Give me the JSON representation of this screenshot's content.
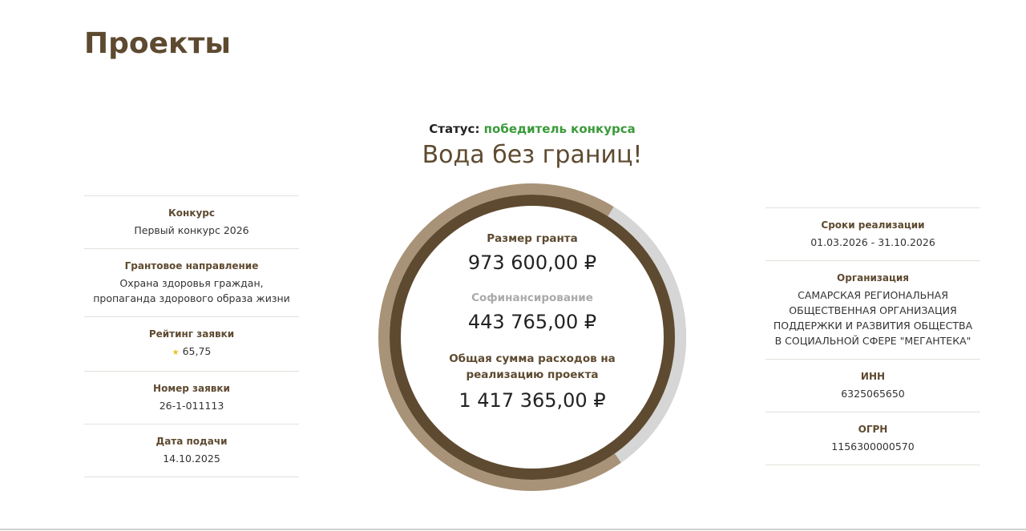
{
  "page": {
    "title": "Проекты"
  },
  "project": {
    "status_label": "Статус:",
    "status_value": "победитель конкурса",
    "name": "Вода без границ!"
  },
  "left": [
    {
      "label": "Конкурс",
      "value": "Первый конкурс 2026"
    },
    {
      "label": "Грантовое направление",
      "value": "Охрана здоровья граждан, пропаганда здорового образа жизни"
    },
    {
      "label": "Рейтинг заявки",
      "value": "65,75",
      "icon": "star-icon"
    },
    {
      "label": "Номер заявки",
      "value": "26-1-011113"
    },
    {
      "label": "Дата подачи",
      "value": "14.10.2025"
    }
  ],
  "right": [
    {
      "label": "Сроки реализации",
      "value": "01.03.2026 - 31.10.2026"
    },
    {
      "label": "Организация",
      "value": "САМАРСКАЯ РЕГИОНАЛЬНАЯ ОБЩЕСТВЕННАЯ ОРГАНИЗАЦИЯ ПОДДЕРЖКИ И РАЗВИТИЯ ОБЩЕСТВА В СОЦИАЛЬНОЙ СФЕРЕ \"МЕГАНТЕКА\""
    },
    {
      "label": "ИНН",
      "value": "6325065650"
    },
    {
      "label": "ОГРН",
      "value": "1156300000570"
    }
  ],
  "finance": {
    "grant_label": "Размер гранта",
    "grant_value": "973 600,00 ₽",
    "cofin_label": "Софинансирование",
    "cofin_value": "443 765,00 ₽",
    "total_label": "Общая сумма расходов на реализацию проекта",
    "total_value": "1 417 365,00 ₽",
    "cofin_share": 0.313
  },
  "colors": {
    "brand": "#5e4a30",
    "ring_light": "#a89378",
    "ring_gray": "#d6d6d6",
    "status": "#3a9a3a"
  }
}
